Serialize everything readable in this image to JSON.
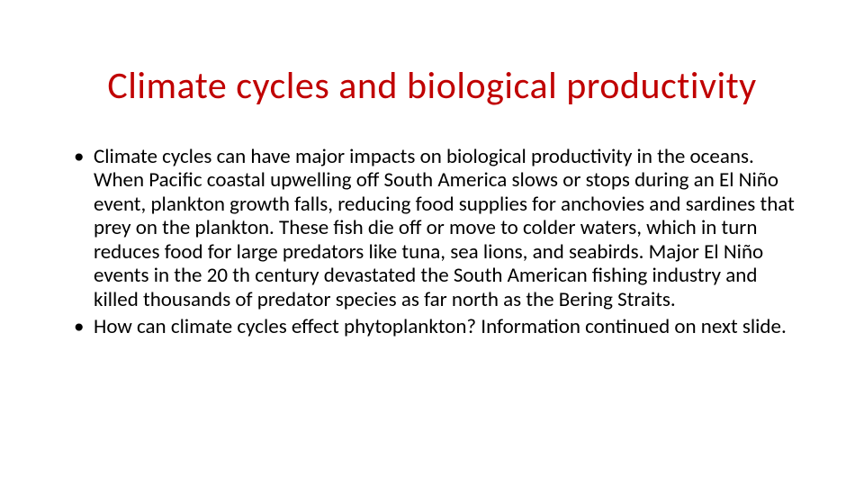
{
  "slide": {
    "title": "Climate cycles and biological productivity",
    "title_color": "#c00000",
    "title_fontsize": 42,
    "body_fontsize": 23,
    "body_color": "#000000",
    "background_color": "#ffffff",
    "bullets": [
      "Climate cycles can have major impacts on biological productivity in the oceans. When Pacific coastal upwelling off South America slows or stops during an El Niño event, plankton growth falls, reducing food supplies for anchovies and sardines that prey on the plankton. These fish die off or move to colder waters, which in turn reduces food for large predators like tuna, sea lions, and seabirds. Major El Niño events in the 20 th century devastated the South American fishing industry and killed thousands of predator species as far north as the Bering Straits.",
      "How can climate cycles effect phytoplankton? Information continued on next slide."
    ]
  }
}
